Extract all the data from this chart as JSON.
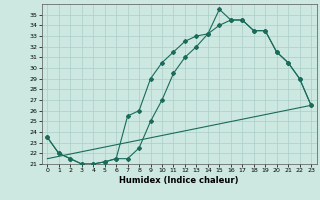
{
  "xlabel": "Humidex (Indice chaleur)",
  "bg_color": "#cce8e0",
  "grid_color": "#aacfc8",
  "line_color": "#1a6b5a",
  "xlim": [
    -0.5,
    23.5
  ],
  "ylim": [
    21,
    36
  ],
  "xticks": [
    0,
    1,
    2,
    3,
    4,
    5,
    6,
    7,
    8,
    9,
    10,
    11,
    12,
    13,
    14,
    15,
    16,
    17,
    18,
    19,
    20,
    21,
    22,
    23
  ],
  "yticks": [
    21,
    22,
    23,
    24,
    25,
    26,
    27,
    28,
    29,
    30,
    31,
    32,
    33,
    34,
    35
  ],
  "line1_x": [
    0,
    1,
    2,
    3,
    4,
    5,
    6,
    7,
    8,
    9,
    10,
    11,
    12,
    13,
    14,
    15,
    16,
    17,
    18,
    19,
    20,
    21,
    22,
    23
  ],
  "line1_y": [
    23.5,
    22.0,
    21.5,
    21.0,
    21.0,
    21.2,
    21.5,
    25.5,
    26.0,
    29.0,
    30.5,
    31.5,
    32.5,
    33.0,
    33.2,
    35.5,
    34.5,
    34.5,
    33.5,
    33.5,
    31.5,
    30.5,
    29.0,
    26.5
  ],
  "line2_x": [
    0,
    1,
    2,
    3,
    4,
    5,
    6,
    7,
    8,
    9,
    10,
    11,
    12,
    13,
    14,
    15,
    16,
    17,
    18,
    19,
    20,
    21,
    22,
    23
  ],
  "line2_y": [
    23.5,
    22.0,
    21.5,
    21.0,
    21.0,
    21.2,
    21.5,
    21.5,
    22.5,
    25.0,
    27.0,
    29.5,
    31.0,
    32.0,
    33.2,
    34.0,
    34.5,
    34.5,
    33.5,
    33.5,
    31.5,
    30.5,
    29.0,
    26.5
  ],
  "line3_x": [
    0,
    23
  ],
  "line3_y": [
    21.5,
    26.5
  ],
  "tick_fontsize": 4.5,
  "xlabel_fontsize": 6
}
